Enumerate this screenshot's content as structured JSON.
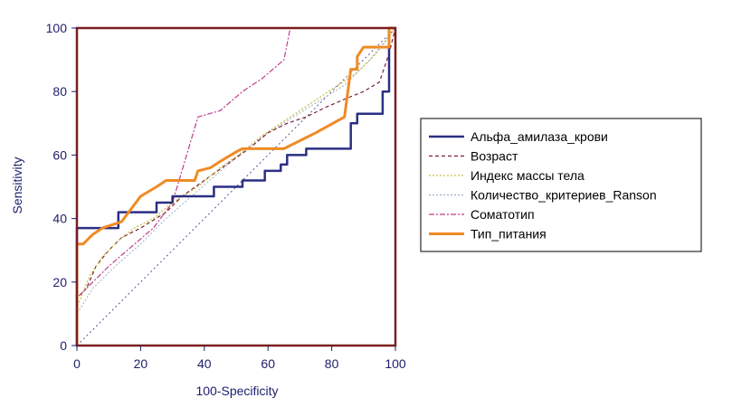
{
  "chart_data": {
    "type": "line",
    "title": "",
    "xlabel": "100-Specificity",
    "ylabel": "Sensitivity",
    "xlim": [
      0,
      100
    ],
    "ylim": [
      0,
      100
    ],
    "x_ticks": [
      "0",
      "20",
      "40",
      "60",
      "80",
      "100"
    ],
    "y_ticks": [
      "0",
      "20",
      "40",
      "60",
      "80",
      "100"
    ],
    "grid": false,
    "legend_position": "right",
    "frame_color": "#7a1f1f",
    "diagonal_reference": true,
    "series": [
      {
        "name": "Альфа_амилаза_крови",
        "color": "#2b2f84",
        "style": "solid",
        "width": 2.5,
        "points": [
          [
            0,
            0
          ],
          [
            0,
            37
          ],
          [
            13,
            37
          ],
          [
            13,
            42
          ],
          [
            25,
            42
          ],
          [
            25,
            45
          ],
          [
            30,
            45
          ],
          [
            30,
            47
          ],
          [
            43,
            47
          ],
          [
            43,
            50
          ],
          [
            52,
            50
          ],
          [
            52,
            52
          ],
          [
            59,
            52
          ],
          [
            59,
            55
          ],
          [
            64,
            55
          ],
          [
            64,
            57
          ],
          [
            66,
            57
          ],
          [
            66,
            60
          ],
          [
            72,
            60
          ],
          [
            72,
            62
          ],
          [
            86,
            62
          ],
          [
            86,
            70
          ],
          [
            88,
            70
          ],
          [
            88,
            73
          ],
          [
            96,
            73
          ],
          [
            96,
            80
          ],
          [
            98,
            80
          ],
          [
            98,
            100
          ],
          [
            100,
            100
          ]
        ]
      },
      {
        "name": "Возраст",
        "color": "#7a1f3a",
        "style": "dashed",
        "width": 1.2,
        "points": [
          [
            0,
            0
          ],
          [
            0,
            15
          ],
          [
            3,
            18
          ],
          [
            6,
            25
          ],
          [
            10,
            30
          ],
          [
            14,
            34
          ],
          [
            20,
            37
          ],
          [
            28,
            42
          ],
          [
            33,
            47
          ],
          [
            40,
            52
          ],
          [
            47,
            57
          ],
          [
            54,
            62
          ],
          [
            60,
            67
          ],
          [
            66,
            70
          ],
          [
            72,
            72
          ],
          [
            78,
            75
          ],
          [
            85,
            78
          ],
          [
            90,
            80
          ],
          [
            95,
            83
          ],
          [
            98,
            92
          ],
          [
            100,
            100
          ]
        ]
      },
      {
        "name": "Индекс массы тела",
        "color": "#c8c04a",
        "style": "dotted",
        "width": 1.3,
        "points": [
          [
            0,
            0
          ],
          [
            0,
            12
          ],
          [
            4,
            22
          ],
          [
            8,
            28
          ],
          [
            13,
            33
          ],
          [
            18,
            37
          ],
          [
            24,
            40
          ],
          [
            30,
            45
          ],
          [
            38,
            50
          ],
          [
            45,
            56
          ],
          [
            52,
            61
          ],
          [
            58,
            66
          ],
          [
            64,
            70
          ],
          [
            70,
            74
          ],
          [
            76,
            78
          ],
          [
            82,
            82
          ],
          [
            88,
            86
          ],
          [
            94,
            92
          ],
          [
            100,
            100
          ]
        ]
      },
      {
        "name": "Количество_критериев_Ranson",
        "color": "#9ab0c8",
        "style": "dotted",
        "width": 1.0,
        "points": [
          [
            0,
            0
          ],
          [
            0,
            10
          ],
          [
            5,
            18
          ],
          [
            12,
            25
          ],
          [
            20,
            32
          ],
          [
            28,
            40
          ],
          [
            36,
            47
          ],
          [
            44,
            54
          ],
          [
            52,
            61
          ],
          [
            60,
            67
          ],
          [
            68,
            72
          ],
          [
            76,
            77
          ],
          [
            84,
            82
          ],
          [
            92,
            90
          ],
          [
            100,
            100
          ]
        ]
      },
      {
        "name": "Соматотип",
        "color": "#c03c8c",
        "style": "dashdot",
        "width": 1.2,
        "points": [
          [
            0,
            0
          ],
          [
            0,
            15
          ],
          [
            5,
            20
          ],
          [
            10,
            25
          ],
          [
            17,
            31
          ],
          [
            24,
            37
          ],
          [
            30,
            45
          ],
          [
            38,
            72
          ],
          [
            45,
            74
          ],
          [
            52,
            80
          ],
          [
            58,
            84
          ],
          [
            65,
            90
          ],
          [
            67,
            100
          ],
          [
            70,
            100
          ],
          [
            100,
            100
          ]
        ]
      },
      {
        "name": "Тип_питания",
        "color": "#f08a24",
        "style": "solid",
        "width": 3,
        "points": [
          [
            0,
            0
          ],
          [
            0,
            32
          ],
          [
            2,
            32
          ],
          [
            5,
            35
          ],
          [
            8,
            37
          ],
          [
            14,
            39
          ],
          [
            20,
            47
          ],
          [
            25,
            50
          ],
          [
            28,
            52
          ],
          [
            35,
            52
          ],
          [
            37,
            52
          ],
          [
            38,
            55
          ],
          [
            42,
            56
          ],
          [
            45,
            58
          ],
          [
            50,
            61
          ],
          [
            52,
            62
          ],
          [
            65,
            62
          ],
          [
            75,
            67
          ],
          [
            84,
            72
          ],
          [
            86,
            87
          ],
          [
            88,
            87
          ],
          [
            88,
            91
          ],
          [
            90,
            94
          ],
          [
            96,
            94
          ],
          [
            98,
            94
          ],
          [
            98,
            100
          ],
          [
            100,
            100
          ]
        ]
      }
    ]
  }
}
